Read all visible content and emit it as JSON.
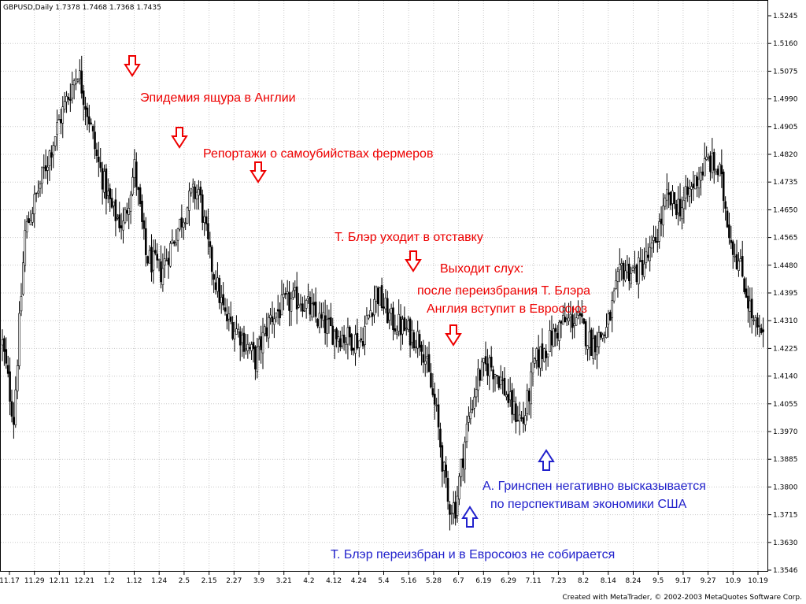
{
  "chart_data": {
    "type": "candlestick",
    "header": "GBPUSD,Daily  1.7378 1.7468 1.7368 1.7435",
    "footer": "Created with MetaTrader, © 2002-2003 MetaQuotes Software Corp.",
    "ylim": [
      1.3546,
      1.5245
    ],
    "y_ticks": [
      "1.5245",
      "1.5160",
      "1.5075",
      "1.4990",
      "1.4905",
      "1.4820",
      "1.4735",
      "1.4650",
      "1.4565",
      "1.4480",
      "1.4395",
      "1.4310",
      "1.4225",
      "1.4140",
      "1.4055",
      "1.3970",
      "1.3885",
      "1.3800",
      "1.3715",
      "1.3630",
      "1.3546"
    ],
    "x_ticks": [
      "11.17",
      "11.29",
      "12.11",
      "12.21",
      "1.2",
      "1.12",
      "1.24",
      "2.5",
      "2.15",
      "2.27",
      "3.9",
      "3.21",
      "4.2",
      "4.12",
      "4.24",
      "5.4",
      "5.16",
      "5.28",
      "6.7",
      "6.19",
      "6.29",
      "7.11",
      "7.23",
      "8.2",
      "8.14",
      "8.24",
      "9.5",
      "9.17",
      "9.27",
      "10.9",
      "10.19"
    ],
    "grid": true,
    "anchors": [
      [
        0,
        1.424
      ],
      [
        6,
        1.401
      ],
      [
        12,
        1.458
      ],
      [
        20,
        1.473
      ],
      [
        30,
        1.492
      ],
      [
        40,
        1.508
      ],
      [
        46,
        1.493
      ],
      [
        50,
        1.481
      ],
      [
        58,
        1.465
      ],
      [
        64,
        1.46
      ],
      [
        70,
        1.478
      ],
      [
        76,
        1.451
      ],
      [
        84,
        1.446
      ],
      [
        92,
        1.458
      ],
      [
        100,
        1.469
      ],
      [
        104,
        1.471
      ],
      [
        110,
        1.45
      ],
      [
        118,
        1.432
      ],
      [
        126,
        1.427
      ],
      [
        134,
        1.419
      ],
      [
        142,
        1.432
      ],
      [
        150,
        1.436
      ],
      [
        158,
        1.438
      ],
      [
        166,
        1.432
      ],
      [
        174,
        1.428
      ],
      [
        182,
        1.426
      ],
      [
        190,
        1.425
      ],
      [
        198,
        1.44
      ],
      [
        206,
        1.431
      ],
      [
        214,
        1.428
      ],
      [
        222,
        1.425
      ],
      [
        230,
        1.402
      ],
      [
        236,
        1.375
      ],
      [
        240,
        1.374
      ],
      [
        246,
        1.398
      ],
      [
        252,
        1.414
      ],
      [
        258,
        1.418
      ],
      [
        264,
        1.413
      ],
      [
        270,
        1.404
      ],
      [
        276,
        1.4
      ],
      [
        282,
        1.418
      ],
      [
        288,
        1.423
      ],
      [
        296,
        1.43
      ],
      [
        304,
        1.432
      ],
      [
        312,
        1.424
      ],
      [
        320,
        1.428
      ],
      [
        328,
        1.447
      ],
      [
        336,
        1.446
      ],
      [
        344,
        1.452
      ],
      [
        352,
        1.468
      ],
      [
        360,
        1.466
      ],
      [
        368,
        1.475
      ],
      [
        374,
        1.48
      ],
      [
        380,
        1.476
      ],
      [
        386,
        1.456
      ],
      [
        392,
        1.445
      ],
      [
        398,
        1.43
      ],
      [
        403,
        1.425
      ]
    ],
    "annotations": [
      {
        "text": "Эпидемия ящура в Англии",
        "color": "red",
        "arrow": "down"
      },
      {
        "text": "Репортажи о самоубийствах фермеров",
        "color": "red",
        "arrow": "down"
      },
      {
        "text": "Т. Блэр уходит в отставку",
        "color": "red",
        "arrow": "down"
      },
      {
        "text": "Выходит слух:",
        "color": "red",
        "arrow": "none"
      },
      {
        "text": "после переизбрания Т. Блэра",
        "color": "red",
        "arrow": "none"
      },
      {
        "text": "Англия вступит в Евросоюз",
        "color": "red",
        "arrow": "down"
      },
      {
        "text": "А. Гринспен негативно высказывается",
        "color": "blue",
        "arrow": "up"
      },
      {
        "text": "по перспективам экономики США",
        "color": "blue",
        "arrow": "none"
      },
      {
        "text": "Т. Блэр переизбран и в Евросоюз не собирается",
        "color": "blue",
        "arrow": "up"
      }
    ],
    "colors": {
      "candle": "#000000",
      "grid": "#c8c8c8",
      "red_annotation": "#ee0000",
      "blue_annotation": "#2222cc"
    }
  }
}
